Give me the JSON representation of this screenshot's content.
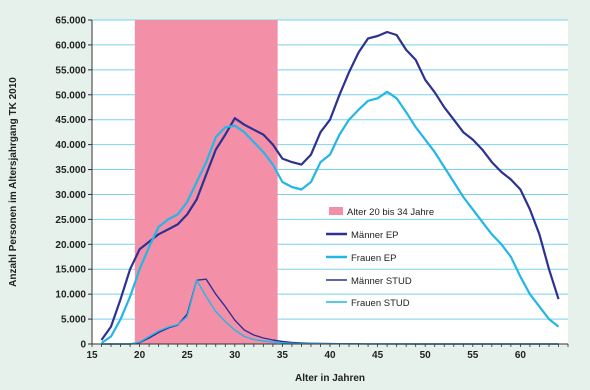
{
  "chart_data": {
    "type": "line",
    "xlabel": "Alter in Jahren",
    "ylabel": "Anzahl Personen im Altersjahrgang TK 2010",
    "xlim": [
      15,
      65
    ],
    "ylim": [
      0,
      65000
    ],
    "x_ticks": [
      "15",
      "20",
      "25",
      "30",
      "35",
      "40",
      "45",
      "50",
      "55",
      "60"
    ],
    "y_ticks": [
      "0",
      "5.000",
      "10.000",
      "15.000",
      "20.000",
      "25.000",
      "30.000",
      "35.000",
      "40.000",
      "45.000",
      "50.000",
      "55.000",
      "60.000",
      "65.000"
    ],
    "grid": true,
    "legend_position": "center-right",
    "highlight_band": {
      "name": "Alter 20 bis 34 Jahre",
      "x_from": 19.5,
      "x_to": 34.5,
      "color": "#f48fa8"
    },
    "x": [
      16,
      17,
      18,
      19,
      20,
      21,
      22,
      23,
      24,
      25,
      26,
      27,
      28,
      29,
      30,
      31,
      32,
      33,
      34,
      35,
      36,
      37,
      38,
      39,
      40,
      41,
      42,
      43,
      44,
      45,
      46,
      47,
      48,
      49,
      50,
      51,
      52,
      53,
      54,
      55,
      56,
      57,
      58,
      59,
      60,
      61,
      62,
      63,
      64
    ],
    "series": [
      {
        "name": "Männer EP",
        "color": "#2e3192",
        "values": [
          800,
          3500,
          9000,
          15000,
          19000,
          20500,
          22000,
          23000,
          24000,
          26000,
          29000,
          34000,
          39000,
          42000,
          45300,
          44000,
          43000,
          42000,
          40000,
          37200,
          36500,
          36000,
          38000,
          42500,
          45000,
          50000,
          54500,
          58500,
          61300,
          61800,
          62600,
          62000,
          59000,
          57000,
          53000,
          50500,
          47500,
          45000,
          42500,
          41000,
          39000,
          36500,
          34500,
          33000,
          31000,
          27000,
          22000,
          15000,
          9000
        ]
      },
      {
        "name": "Frauen EP",
        "color": "#24b6e6",
        "values": [
          200,
          1500,
          5000,
          9500,
          15000,
          19500,
          23500,
          25000,
          26000,
          28500,
          32500,
          36500,
          41500,
          43500,
          43800,
          42500,
          40500,
          38500,
          36000,
          32500,
          31500,
          31000,
          32500,
          36500,
          38000,
          42000,
          45000,
          47000,
          48800,
          49300,
          50600,
          49300,
          46500,
          43500,
          41000,
          38500,
          35500,
          32500,
          29500,
          27000,
          24500,
          22000,
          20000,
          17500,
          13500,
          10000,
          7500,
          5000,
          3500
        ]
      },
      {
        "name": "Männer STUD",
        "color": "#2e3192",
        "values": [
          0,
          0,
          0,
          0,
          300,
          1200,
          2300,
          3200,
          3800,
          6000,
          12800,
          13000,
          10000,
          7500,
          4800,
          2800,
          1800,
          1200,
          800,
          500,
          300,
          200,
          150,
          100,
          80,
          60,
          50,
          40,
          30,
          30,
          20,
          20,
          20,
          10,
          10,
          10,
          10,
          10,
          10,
          10,
          10,
          10,
          10,
          10,
          10,
          10,
          10,
          10,
          10
        ]
      },
      {
        "name": "Frauen STUD",
        "color": "#24b6e6",
        "values": [
          0,
          0,
          0,
          0,
          400,
          1500,
          2600,
          3400,
          3900,
          5500,
          12800,
          9500,
          6500,
          4500,
          2800,
          1500,
          900,
          600,
          400,
          250,
          150,
          100,
          80,
          60,
          50,
          40,
          30,
          30,
          20,
          20,
          20,
          10,
          10,
          10,
          10,
          10,
          10,
          10,
          10,
          10,
          10,
          10,
          10,
          10,
          10,
          10,
          10,
          10,
          10
        ]
      }
    ]
  }
}
